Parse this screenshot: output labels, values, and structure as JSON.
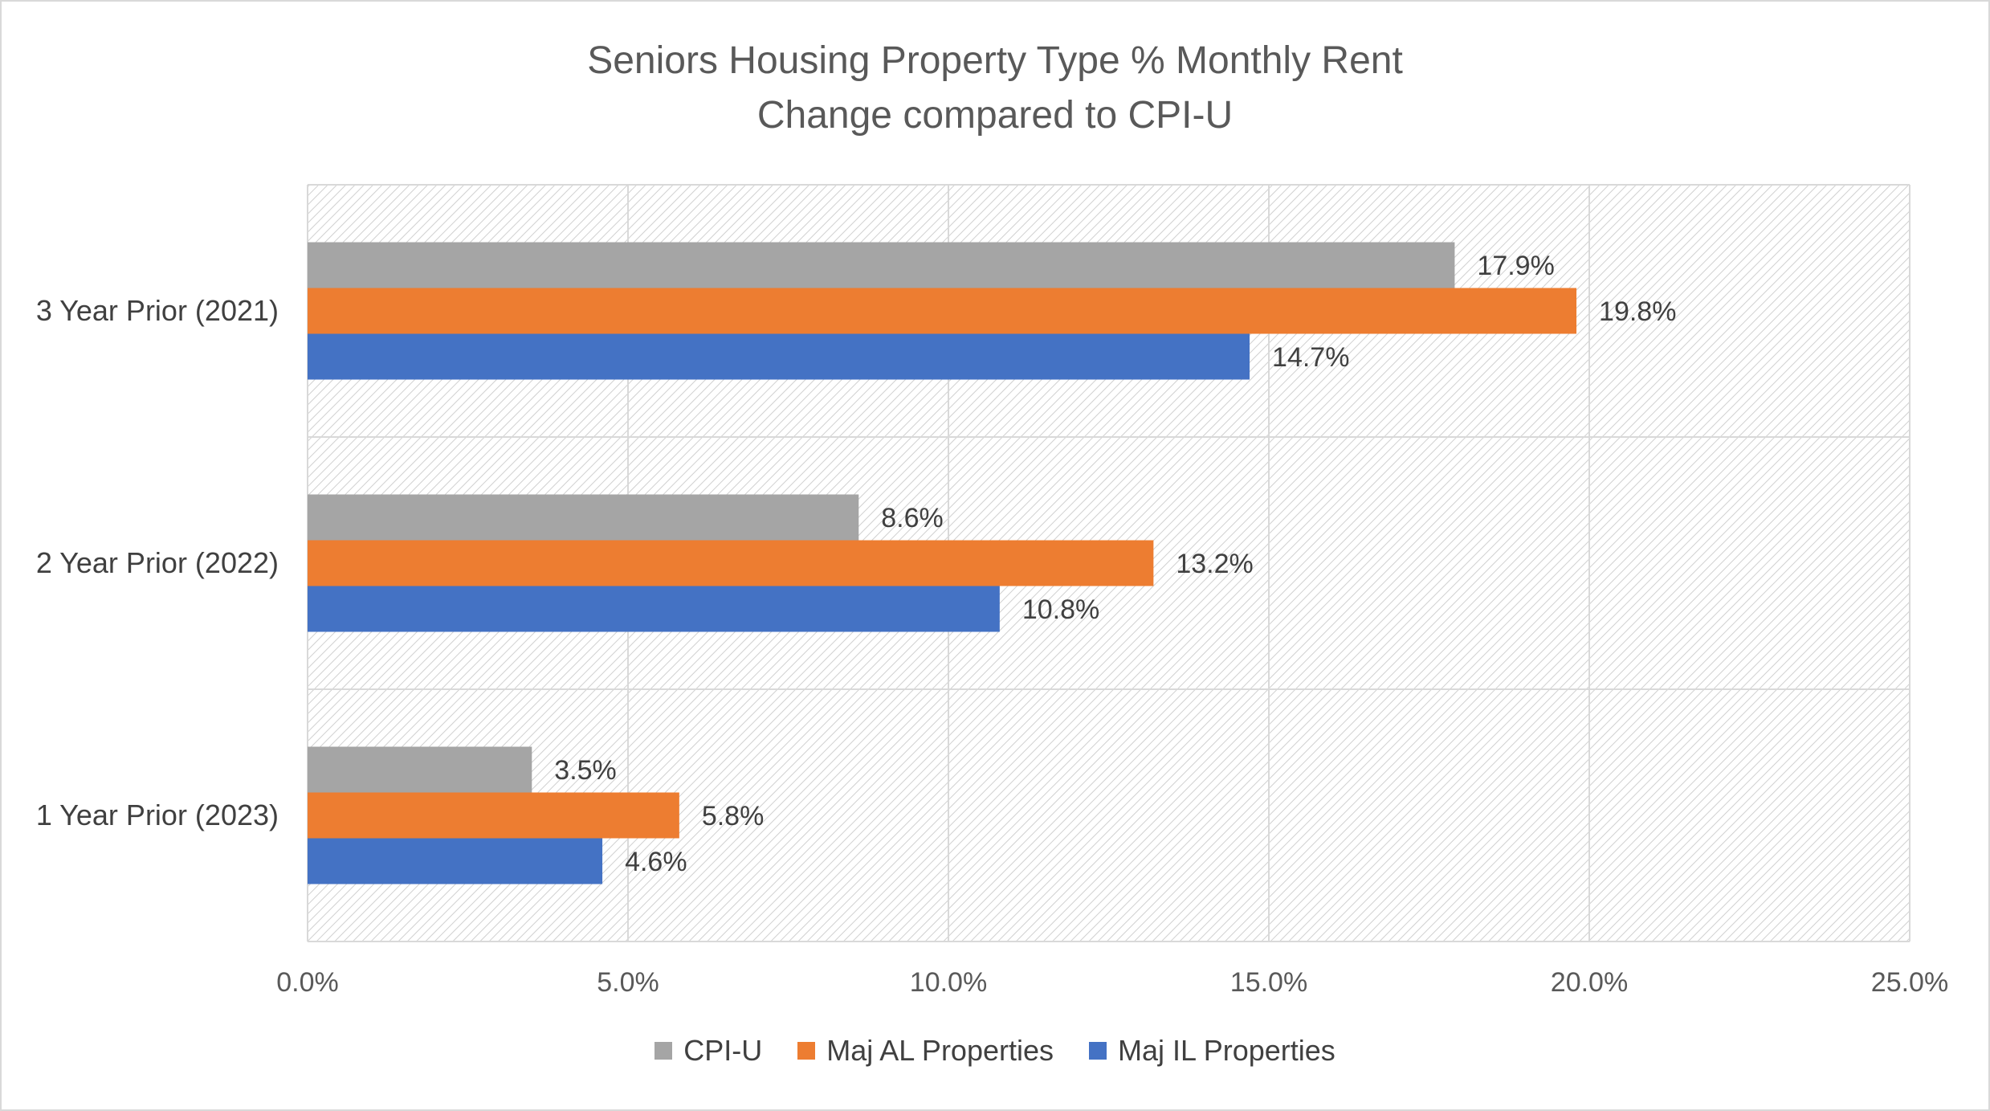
{
  "chart_data": {
    "type": "bar",
    "orientation": "horizontal",
    "title": "Seniors Housing Property Type % Monthly Rent",
    "subtitle": "Change compared to CPI-U",
    "categories": [
      "3 Year Prior (2021)",
      "2 Year Prior (2022)",
      "1 Year Prior (2023)"
    ],
    "series": [
      {
        "name": "CPI-U",
        "color": "#a5a5a5",
        "values": [
          17.9,
          8.6,
          3.5
        ],
        "labels": [
          "17.9%",
          "8.6%",
          "3.5%"
        ]
      },
      {
        "name": "Maj AL Properties",
        "color": "#ed7d31",
        "values": [
          19.8,
          13.2,
          5.8
        ],
        "labels": [
          "19.8%",
          "13.2%",
          "5.8%"
        ]
      },
      {
        "name": "Maj IL Properties",
        "color": "#4472c4",
        "values": [
          14.7,
          10.8,
          4.6
        ],
        "labels": [
          "14.7%",
          "10.8%",
          "4.6%"
        ]
      }
    ],
    "xlim": [
      0,
      25
    ],
    "xticks": [
      0,
      5,
      10,
      15,
      20,
      25
    ],
    "xtick_labels": [
      "0.0%",
      "5.0%",
      "10.0%",
      "15.0%",
      "20.0%",
      "25.0%"
    ],
    "grid": true,
    "legend_position": "bottom"
  }
}
